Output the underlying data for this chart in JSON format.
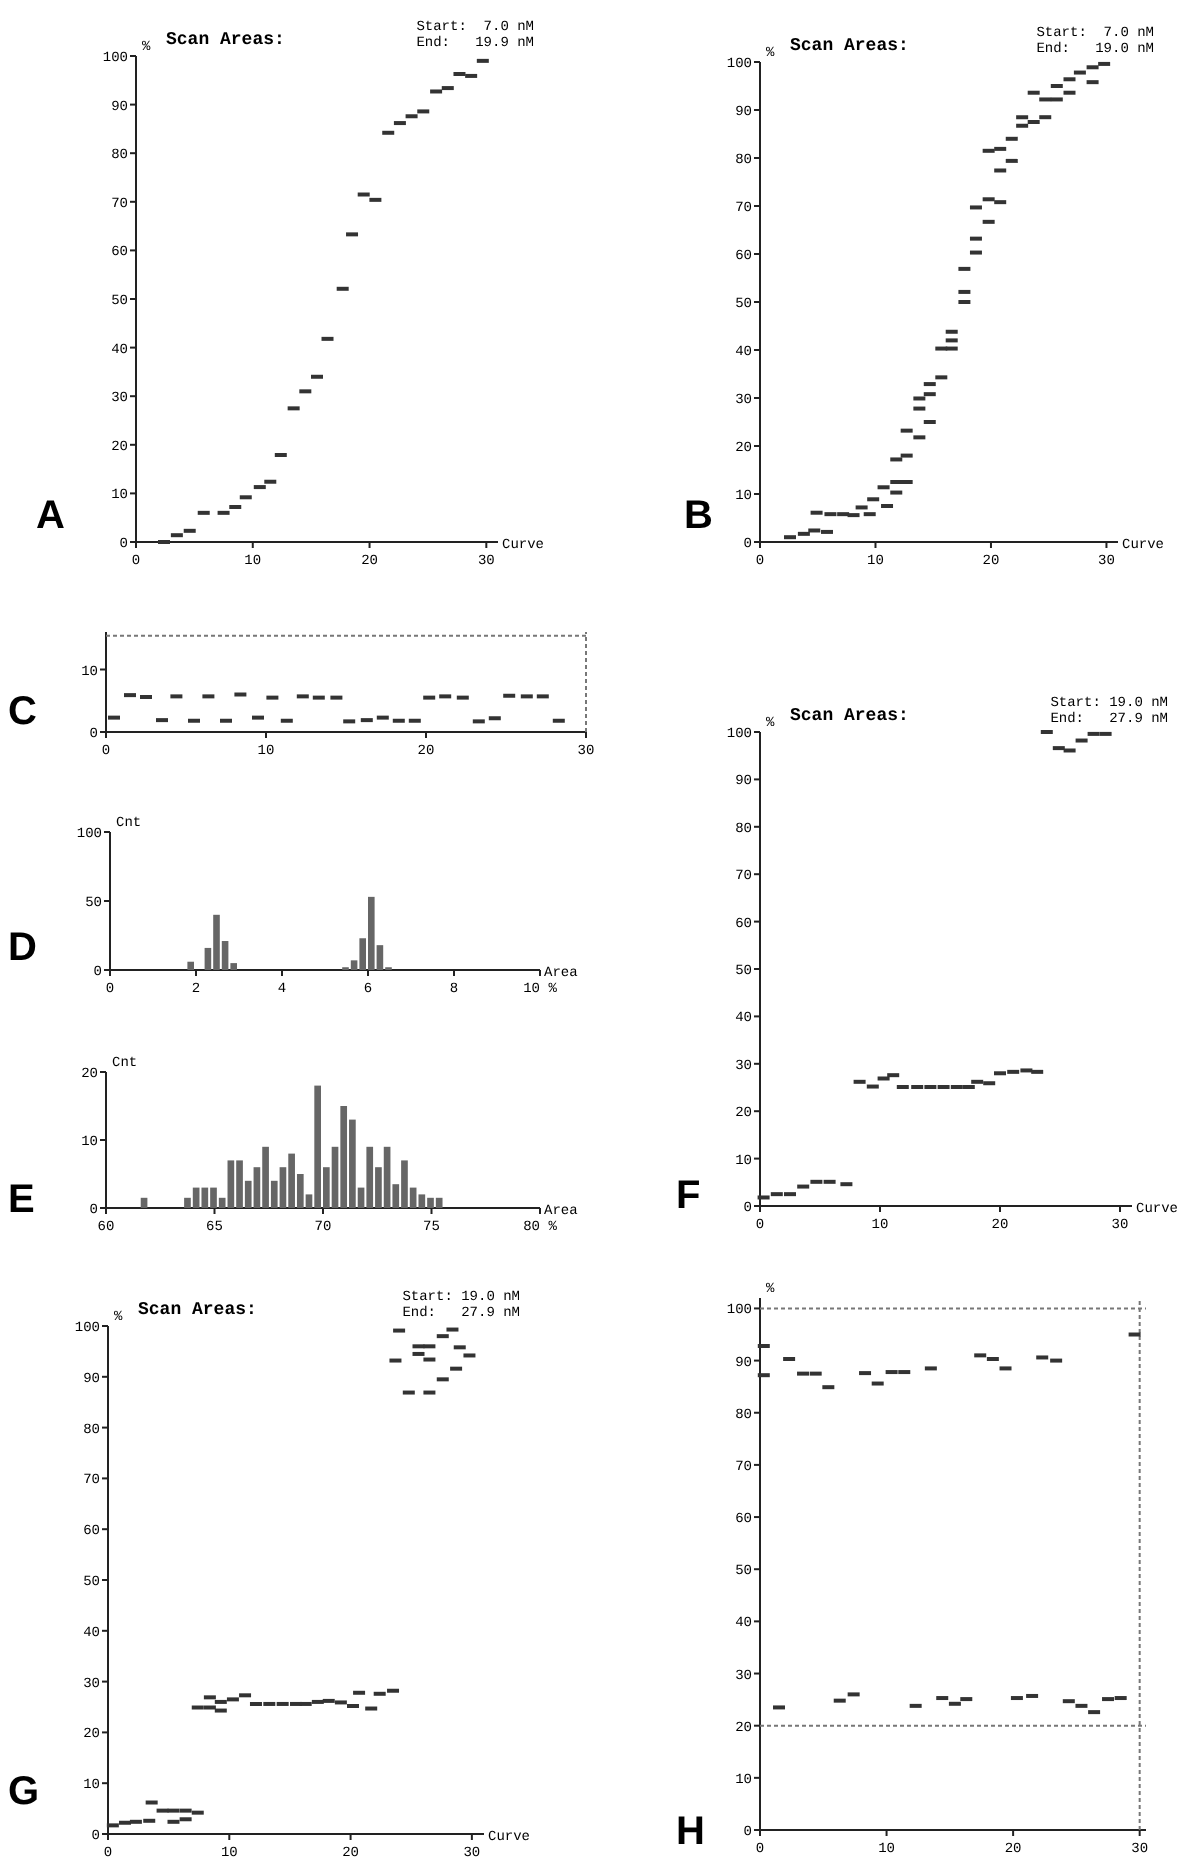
{
  "chart_data": [
    {
      "type": "scatter",
      "title": "Scan Areas:",
      "annotations": [
        "A",
        "Start:  7.0 nM",
        "End:   19.9 nM"
      ],
      "xlabel": "Curve",
      "ylabel": "%",
      "xlim": [
        0,
        31
      ],
      "ylim": [
        0,
        100
      ],
      "xticks": [
        0,
        10,
        20,
        30
      ],
      "yticks": [
        0,
        10,
        20,
        30,
        40,
        50,
        60,
        70,
        80,
        90,
        100
      ],
      "color": "#333333",
      "x": [
        2.4,
        3.5,
        4.6,
        5.8,
        7.5,
        8.5,
        9.4,
        10.6,
        11.5,
        12.4,
        13.5,
        14.5,
        15.5,
        16.4,
        17.7,
        18.5,
        19.5,
        20.5,
        21.6,
        22.6,
        23.6,
        24.6,
        25.7,
        26.7,
        27.7,
        28.7,
        29.7
      ],
      "values": [
        0,
        1.4,
        2.3,
        6,
        6,
        7.2,
        9.2,
        11.3,
        12.4,
        17.9,
        27.5,
        31,
        34,
        41.8,
        52.1,
        63.3,
        71.5,
        70.4,
        84.2,
        86.2,
        87.6,
        88.6,
        92.7,
        93.4,
        96.3,
        95.9,
        99
      ]
    },
    {
      "type": "scatter",
      "title": "Scan Areas:",
      "annotations": [
        "B",
        "Start:  7.0 nM",
        "End:   19.0 nM"
      ],
      "xlabel": "Curve",
      "ylabel": "%",
      "xlim": [
        0,
        31
      ],
      "ylim": [
        0,
        100
      ],
      "xticks": [
        0,
        10,
        20,
        30
      ],
      "yticks": [
        0,
        10,
        20,
        30,
        40,
        50,
        60,
        70,
        80,
        90,
        100
      ],
      "color": "#333333",
      "x": [
        2.6,
        3.8,
        4.7,
        5.8,
        4.9,
        6.1,
        7.2,
        8.1,
        8.8,
        9.5,
        9.8,
        10.7,
        11,
        11.8,
        11.8,
        12.7,
        11.8,
        12.7,
        12.7,
        13.8,
        13.8,
        13.8,
        14.7,
        14.7,
        14.7,
        15.7,
        15.7,
        16.6,
        16.6,
        16.6,
        17.7,
        17.7,
        17.7,
        18.7,
        18.7,
        18.7,
        19.8,
        19.8,
        20.8,
        19.8,
        20.8,
        20.8,
        21.8,
        21.8,
        22.7,
        22.7,
        23.7,
        24.7,
        23.7,
        24.7,
        25.7,
        25.7,
        26.8,
        26.8,
        27.7,
        28.8,
        28.8,
        29.8
      ],
      "values": [
        1,
        1.7,
        2.4,
        2.1,
        6.1,
        5.8,
        5.8,
        5.6,
        7.2,
        5.8,
        8.9,
        11.4,
        7.5,
        10.3,
        12.5,
        12.5,
        17.2,
        18,
        23.2,
        21.8,
        27.8,
        29.9,
        30.8,
        32.9,
        25,
        34.3,
        40.3,
        40.3,
        42,
        43.8,
        52.1,
        50,
        56.9,
        60.3,
        63.2,
        69.7,
        66.7,
        71.4,
        70.8,
        81.5,
        81.9,
        77.4,
        79.4,
        84,
        88.5,
        86.7,
        87.5,
        88.5,
        93.6,
        92.2,
        92.2,
        95,
        93.6,
        96.4,
        97.8,
        95.8,
        98.9,
        99.6
      ]
    },
    {
      "type": "scatter",
      "annotations": [
        "C"
      ],
      "xlim": [
        0,
        30
      ],
      "ylim": [
        0,
        16
      ],
      "xticks": [
        0,
        10,
        20,
        30
      ],
      "yticks": [
        0,
        10
      ],
      "color": "#333333",
      "ref_lines": [
        {
          "axis": "y",
          "value": 15.4,
          "line_style": "dotted",
          "color": "#777777"
        },
        {
          "axis": "x",
          "value": 30,
          "line_style": "dotted",
          "color": "#777777"
        }
      ],
      "x": [
        1.5,
        2.5,
        4.4,
        6.4,
        8.4,
        10.4,
        12.3,
        13.3,
        14.4,
        20.2,
        21.2,
        22.3,
        25.2,
        26.3,
        27.3,
        0.5,
        3.5,
        5.5,
        7.5,
        9.5,
        11.3,
        15.2,
        16.3,
        17.3,
        18.3,
        19.3,
        23.3,
        24.3,
        28.3
      ],
      "values": [
        5.9,
        5.6,
        5.7,
        5.7,
        6,
        5.5,
        5.7,
        5.5,
        5.5,
        5.5,
        5.7,
        5.5,
        5.8,
        5.7,
        5.7,
        2.3,
        1.9,
        1.8,
        1.8,
        2.3,
        1.8,
        1.7,
        1.9,
        2.3,
        1.8,
        1.8,
        1.7,
        2.2,
        1.8
      ]
    },
    {
      "type": "histogram",
      "annotations": [
        "D"
      ],
      "xlabel": "Area",
      "ylabel": "Cnt",
      "xlim": [
        0,
        10
      ],
      "ylim": [
        0,
        100
      ],
      "xticks": [
        0,
        2,
        4,
        6,
        8,
        {
          "value": 10,
          "label": "10 %"
        }
      ],
      "yticks": [
        0,
        50,
        100
      ],
      "color": "#666666",
      "bins": [
        0,
        0.2,
        0.4,
        0.6,
        0.8,
        1,
        1.2,
        1.4,
        1.6,
        1.8,
        2,
        2.2,
        2.4,
        2.6,
        2.8,
        3,
        3.2,
        3.4,
        3.6,
        3.8,
        4,
        4.2,
        4.4,
        4.6,
        4.8,
        5,
        5.2,
        5.4,
        5.6,
        5.8,
        6,
        6.2,
        6.4,
        6.6,
        6.8,
        7,
        7.2,
        7.4,
        7.6,
        7.8,
        8,
        8.2,
        8.4,
        8.6,
        8.8,
        9,
        9.2,
        9.4,
        9.6,
        9.8,
        10
      ],
      "values": [
        0,
        0,
        0,
        0,
        0,
        0,
        0,
        0,
        0,
        6,
        0,
        16,
        40,
        21,
        5,
        0,
        0,
        0,
        0,
        0,
        0,
        0,
        0,
        0,
        0,
        0,
        0,
        2,
        7,
        23,
        53,
        18,
        2,
        0,
        0,
        0,
        0,
        0,
        0,
        0,
        0,
        0,
        0,
        0,
        0,
        0,
        0,
        0,
        0,
        0
      ]
    },
    {
      "type": "histogram",
      "annotations": [
        "E"
      ],
      "xlabel": "Area",
      "ylabel": "Cnt",
      "xlim": [
        60,
        80
      ],
      "ylim": [
        0,
        20
      ],
      "xticks": [
        60,
        65,
        70,
        75,
        {
          "value": 80,
          "label": "80 %"
        }
      ],
      "yticks": [
        0,
        10,
        20
      ],
      "color": "#666666",
      "bins": [
        60,
        60.4,
        60.8,
        61.2,
        61.6,
        62,
        62.4,
        62.8,
        63.2,
        63.6,
        64,
        64.4,
        64.8,
        65.2,
        65.6,
        66,
        66.4,
        66.8,
        67.2,
        67.6,
        68,
        68.4,
        68.8,
        69.2,
        69.6,
        70,
        70.4,
        70.8,
        71.2,
        71.6,
        72,
        72.4,
        72.8,
        73.2,
        73.6,
        74,
        74.4,
        74.8,
        75.2,
        75.6,
        76,
        76.4,
        76.8,
        77.2,
        77.6,
        78,
        78.4,
        78.8,
        79.2,
        79.6,
        80
      ],
      "values": [
        0,
        0,
        0,
        0,
        1.5,
        0,
        0,
        0,
        0,
        1.5,
        3,
        3,
        3,
        1.5,
        7,
        7,
        4,
        6,
        9,
        4,
        6,
        8,
        5,
        2,
        18,
        6,
        9,
        15,
        13,
        3,
        9,
        6,
        9,
        3.5,
        7,
        3,
        2,
        1.5,
        1.5,
        0,
        0,
        0,
        0,
        0,
        0,
        0,
        0,
        0,
        0,
        0
      ]
    },
    {
      "type": "scatter",
      "title": "Scan Areas:",
      "annotations": [
        "F",
        "Start: 19.0 nM",
        "End:   27.9 nM"
      ],
      "xlabel": "Curve",
      "ylabel": "%",
      "xlim": [
        0,
        31
      ],
      "ylim": [
        0,
        100
      ],
      "xticks": [
        0,
        10,
        20,
        30
      ],
      "yticks": [
        0,
        10,
        20,
        30,
        40,
        50,
        60,
        70,
        80,
        90,
        100
      ],
      "color": "#333333",
      "x": [
        0.3,
        1.4,
        2.5,
        3.6,
        4.7,
        5.8,
        7.2,
        8.3,
        9.4,
        10.3,
        11.1,
        11.9,
        13.1,
        14.2,
        15.3,
        16.4,
        17.4,
        18.1,
        19.1,
        20,
        21.1,
        22.2,
        23.1,
        23.9,
        24.9,
        25.8,
        26.8,
        27.8,
        28.8
      ],
      "values": [
        1.8,
        2.5,
        2.5,
        4.1,
        5.1,
        5.1,
        4.6,
        26.2,
        25.2,
        26.9,
        27.6,
        25.1,
        25.1,
        25.1,
        25.1,
        25.1,
        25.1,
        26.2,
        25.9,
        28,
        28.3,
        28.6,
        28.3,
        100,
        96.6,
        96.1,
        98.2,
        99.6,
        99.6
      ]
    },
    {
      "type": "scatter",
      "title": "Scan Areas:",
      "annotations": [
        "G",
        "Start: 19.0 nM",
        "End:   27.9 nM"
      ],
      "xlabel": "Curve",
      "ylabel": "%",
      "xlim": [
        0,
        31
      ],
      "ylim": [
        0,
        100
      ],
      "xticks": [
        0,
        10,
        20,
        30
      ],
      "yticks": [
        0,
        10,
        20,
        30,
        40,
        50,
        60,
        70,
        80,
        90,
        100
      ],
      "color": "#333333",
      "x": [
        0.4,
        1.4,
        2.3,
        3.4,
        3.6,
        4.5,
        5.4,
        6.4,
        7.4,
        6.4,
        5.4,
        7.4,
        8.4,
        8.4,
        9.3,
        9.3,
        10.3,
        11.3,
        12.2,
        13.3,
        14.4,
        15.5,
        16.3,
        17.3,
        18.2,
        19.2,
        20.2,
        20.7,
        21.7,
        22.4,
        23.5,
        24,
        23.7,
        24.8,
        26.5,
        25.6,
        25.6,
        26.5,
        26.5,
        27.6,
        27.6,
        28.7,
        29,
        29.8,
        28.4
      ],
      "values": [
        1.7,
        2.2,
        2.4,
        2.6,
        6.2,
        4.6,
        4.6,
        4.6,
        4.2,
        2.9,
        2.4,
        24.9,
        26.9,
        24.9,
        26,
        24.3,
        26.5,
        27.3,
        25.6,
        25.6,
        25.6,
        25.6,
        25.6,
        26,
        26.2,
        25.9,
        25.2,
        27.8,
        24.7,
        27.6,
        28.2,
        99.1,
        93.2,
        86.9,
        86.9,
        96,
        94.5,
        93.4,
        96,
        89.5,
        98,
        91.6,
        95.8,
        94.2,
        99.3
      ]
    },
    {
      "type": "scatter",
      "annotations": [
        "H"
      ],
      "ylabel": "%",
      "xlim": [
        0,
        30.5
      ],
      "ylim": [
        0,
        102
      ],
      "xticks": [
        0,
        10,
        20,
        30
      ],
      "yticks": [
        0,
        10,
        20,
        30,
        40,
        50,
        60,
        70,
        80,
        90,
        100
      ],
      "color": "#333333",
      "ref_lines": [
        {
          "axis": "y",
          "value": 100,
          "line_style": "dotted",
          "color": "#777777"
        },
        {
          "axis": "y",
          "value": 20,
          "line_style": "dotted",
          "color": "#777777"
        },
        {
          "axis": "x",
          "value": 30,
          "line_style": "dotted",
          "color": "#777777"
        }
      ],
      "x": [
        0.3,
        0.3,
        2.3,
        3.4,
        4.4,
        5.4,
        8.3,
        9.3,
        10.4,
        11.4,
        13.5,
        17.4,
        18.4,
        19.4,
        22.3,
        23.4,
        29.6,
        1.5,
        6.3,
        7.4,
        12.3,
        14.4,
        15.4,
        16.3,
        20.3,
        21.5,
        24.4,
        25.4,
        26.4,
        27.5,
        28.5
      ],
      "values": [
        92.8,
        87.2,
        90.3,
        87.5,
        87.5,
        84.9,
        87.6,
        85.6,
        87.8,
        87.8,
        88.5,
        91,
        90.3,
        88.5,
        90.6,
        90,
        95,
        23.5,
        24.8,
        26,
        23.8,
        25.3,
        24.2,
        25.1,
        25.3,
        25.7,
        24.7,
        23.8,
        22.6,
        25.1,
        25.3
      ]
    }
  ]
}
